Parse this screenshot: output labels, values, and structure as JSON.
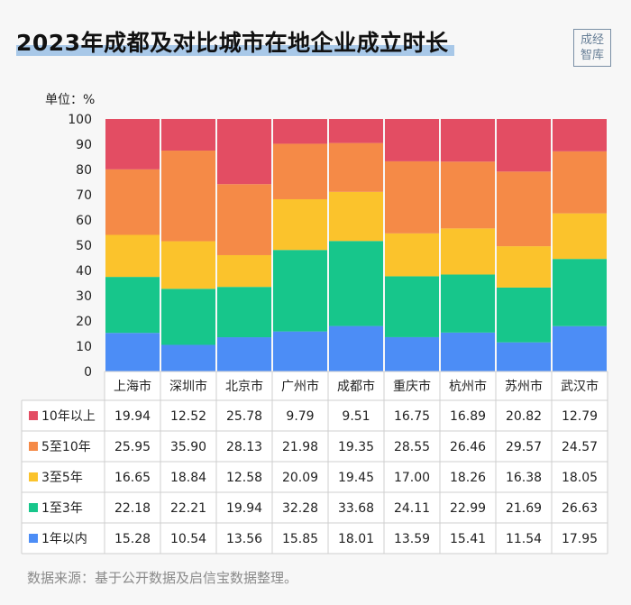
{
  "title": "2023年成都及对比城市在地企业成立时长",
  "logo": {
    "line1": "成经",
    "line2": "智库"
  },
  "unit_label": "单位：%",
  "footer": "数据来源：基于公开数据及启信宝数据整理。",
  "colors": {
    "s10plus": "#e34d63",
    "s5to10": "#f58a47",
    "s3to5": "#fbc32c",
    "s1to3": "#17c68b",
    "s1": "#4c8df6"
  },
  "chart_data": {
    "type": "bar",
    "stacked": true,
    "categories": [
      "上海市",
      "深圳市",
      "北京市",
      "广州市",
      "成都市",
      "重庆市",
      "杭州市",
      "苏州市",
      "武汉市"
    ],
    "series": [
      {
        "name": "1年以内",
        "color_key": "s1",
        "values": [
          15.28,
          10.54,
          13.56,
          15.85,
          18.01,
          13.59,
          15.41,
          11.54,
          17.95
        ]
      },
      {
        "name": "1至3年",
        "color_key": "s1to3",
        "values": [
          22.18,
          22.21,
          19.94,
          32.28,
          33.68,
          24.11,
          22.99,
          21.69,
          26.63
        ]
      },
      {
        "name": "3至5年",
        "color_key": "s3to5",
        "values": [
          16.65,
          18.84,
          12.58,
          20.09,
          19.45,
          17.0,
          18.26,
          16.38,
          18.05
        ]
      },
      {
        "name": "5至10年",
        "color_key": "s5to10",
        "values": [
          25.95,
          35.9,
          28.13,
          21.98,
          19.35,
          28.55,
          26.46,
          29.57,
          24.57
        ]
      },
      {
        "name": "10年以上",
        "color_key": "s10plus",
        "values": [
          19.94,
          12.52,
          25.78,
          9.79,
          9.51,
          16.75,
          16.89,
          20.82,
          12.79
        ]
      }
    ],
    "table_order": [
      "10年以上",
      "5至10年",
      "3至5年",
      "1至3年",
      "1年以内"
    ],
    "yticks": [
      "0",
      "10",
      "20",
      "30",
      "40",
      "50",
      "60",
      "70",
      "80",
      "90",
      "100"
    ],
    "ylim": [
      0,
      100
    ],
    "grid": false,
    "legend": "data-table-below"
  }
}
